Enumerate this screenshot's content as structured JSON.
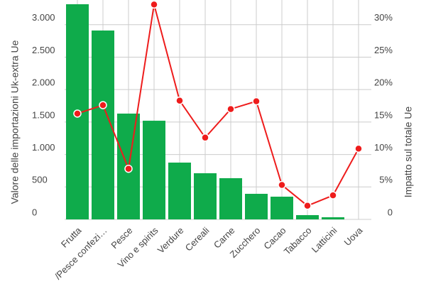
{
  "chart_data": {
    "type": "bar-line",
    "y_label": "Valore delle importazioni Uk-extra Ue",
    "y2_label": "Impatto sul totale Ue",
    "categories": [
      "Frutta",
      "/Pesce confezi…",
      "Pesce",
      "Vino e spirits",
      "Verdure",
      "Cereali",
      "Carne",
      "Zucchero",
      "Cacao",
      "Tabacco",
      "Latticini",
      "Uova"
    ],
    "series": [
      {
        "type": "bar",
        "color": "#0fab4b",
        "values": [
          3315,
          2910,
          1630,
          1520,
          875,
          711,
          635,
          394,
          350,
          66,
          33,
          0
        ]
      },
      {
        "type": "line",
        "axis": "y2",
        "color": "#ee1c1c",
        "values": [
          16.3,
          17.6,
          7.8,
          33.1,
          18.3,
          12.6,
          17.0,
          18.2,
          5.3,
          2.1,
          3.7,
          10.9
        ]
      }
    ],
    "ylim": [
      0,
      3380
    ],
    "yticks": [
      0,
      500,
      {
        "value": 1000,
        "label": "1.000"
      },
      {
        "value": 1500,
        "label": "1.500"
      },
      {
        "value": 2000,
        "label": "2.000"
      },
      {
        "value": 2500,
        "label": "2.500"
      },
      {
        "value": 3000,
        "label": "3.000"
      }
    ],
    "y2lim": [
      0,
      33.8
    ],
    "y2ticks": [
      {
        "value": 0,
        "label": "0"
      },
      {
        "value": 5,
        "label": "5%"
      },
      {
        "value": 10,
        "label": "10%"
      },
      {
        "value": 15,
        "label": "15%"
      },
      {
        "value": 20,
        "label": "20%"
      },
      {
        "value": 25,
        "label": "25%"
      },
      {
        "value": 30,
        "label": "30%"
      }
    ],
    "grid": true
  }
}
